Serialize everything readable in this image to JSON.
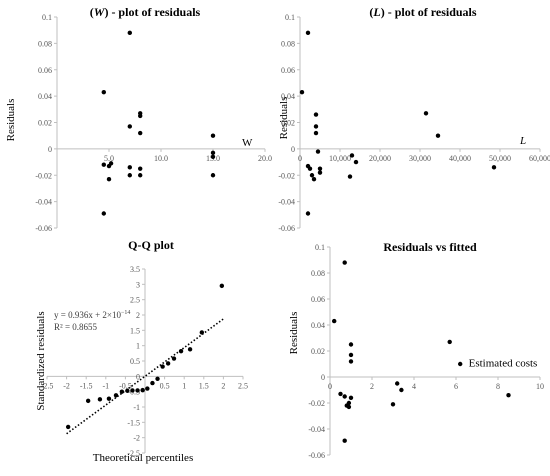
{
  "chart_data": [
    {
      "type": "scatter",
      "title_var": "W",
      "title_rest": " - plot of residuals",
      "ylabel": "Residuals",
      "xlabel": "W",
      "xlim": [
        0,
        20
      ],
      "ylim": [
        -0.06,
        0.1
      ],
      "xticks": [
        0,
        5,
        10,
        15,
        20
      ],
      "xtick_labels": [
        "",
        "5.0",
        "10.0",
        "15.0",
        "20.0"
      ],
      "yticks": [
        0.1,
        0.08,
        0.06,
        0.04,
        0.02,
        0,
        -0.02,
        -0.04,
        -0.06
      ],
      "ytick_labels": [
        "0.1",
        "0.08",
        "0.06",
        "0.04",
        "0.02",
        "0",
        "-0.02",
        "-0.04",
        "-0.06"
      ],
      "points": [
        {
          "x": 4.5,
          "y": 0.043
        },
        {
          "x": 4.5,
          "y": -0.012
        },
        {
          "x": 4.5,
          "y": -0.049
        },
        {
          "x": 5.0,
          "y": -0.013
        },
        {
          "x": 5.0,
          "y": -0.023
        },
        {
          "x": 5.2,
          "y": -0.011
        },
        {
          "x": 7.0,
          "y": 0.088
        },
        {
          "x": 7.0,
          "y": 0.017
        },
        {
          "x": 7.0,
          "y": -0.014
        },
        {
          "x": 7.0,
          "y": -0.02
        },
        {
          "x": 8.0,
          "y": 0.027
        },
        {
          "x": 8.0,
          "y": 0.025
        },
        {
          "x": 8.0,
          "y": 0.012
        },
        {
          "x": 8.0,
          "y": -0.015
        },
        {
          "x": 8.0,
          "y": -0.02
        },
        {
          "x": 15.0,
          "y": 0.01
        },
        {
          "x": 15.0,
          "y": -0.003
        },
        {
          "x": 15.0,
          "y": -0.006
        },
        {
          "x": 15.0,
          "y": -0.02
        }
      ]
    },
    {
      "type": "scatter",
      "title_var": "L",
      "title_rest": " - plot of residuals",
      "ylabel": "Residuals",
      "xlabel": "L",
      "xlim": [
        0,
        60000
      ],
      "ylim": [
        -0.06,
        0.1
      ],
      "xticks": [
        0,
        10000,
        20000,
        30000,
        40000,
        50000,
        60000
      ],
      "xtick_labels": [
        "0",
        "10,000",
        "20,000",
        "30,000",
        "40,000",
        "50,000",
        "60,000"
      ],
      "yticks": [
        0.1,
        0.08,
        0.06,
        0.04,
        0.02,
        0,
        -0.02,
        -0.04,
        -0.06
      ],
      "ytick_labels": [
        "0.1",
        "0.08",
        "0.06",
        "0.04",
        "0.02",
        "0",
        "-0.02",
        "-0.04",
        "-0.06"
      ],
      "points": [
        {
          "x": 500,
          "y": 0.043
        },
        {
          "x": 2000,
          "y": 0.088
        },
        {
          "x": 2000,
          "y": -0.013
        },
        {
          "x": 2000,
          "y": -0.049
        },
        {
          "x": 2500,
          "y": -0.015
        },
        {
          "x": 3000,
          "y": -0.02
        },
        {
          "x": 3500,
          "y": -0.023
        },
        {
          "x": 4000,
          "y": 0.026
        },
        {
          "x": 4000,
          "y": 0.017
        },
        {
          "x": 4000,
          "y": 0.012
        },
        {
          "x": 4500,
          "y": -0.002
        },
        {
          "x": 5000,
          "y": -0.018
        },
        {
          "x": 5000,
          "y": -0.015
        },
        {
          "x": 12500,
          "y": -0.021
        },
        {
          "x": 13000,
          "y": -0.005
        },
        {
          "x": 14000,
          "y": -0.01
        },
        {
          "x": 31500,
          "y": 0.027
        },
        {
          "x": 34500,
          "y": 0.01
        },
        {
          "x": 48500,
          "y": -0.014
        }
      ]
    },
    {
      "type": "scatter",
      "title": "Q-Q plot",
      "ylabel": "Standardized residuals",
      "xlabel": "Theoretical percentiles",
      "xlim": [
        -2.5,
        2.5
      ],
      "ylim": [
        -2.5,
        3.5
      ],
      "xticks": [
        -2.5,
        -2,
        -1.5,
        -1,
        -0.5,
        0,
        0.5,
        1,
        1.5,
        2,
        2.5
      ],
      "xtick_labels": [
        "-2.5",
        "-2",
        "-1.5",
        "-1",
        "-0.5",
        "0",
        "0.5",
        "1",
        "1.5",
        "2",
        "2.5"
      ],
      "yticks": [
        3.5,
        3,
        2.5,
        2,
        1.5,
        1,
        0.5,
        0,
        -0.5,
        -1,
        -1.5,
        -2,
        -2.5
      ],
      "ytick_labels": [
        "3.5",
        "3",
        "2.5",
        "2",
        "1.5",
        "1",
        "0.5",
        "0",
        "-0.5",
        "-1",
        "-1.5",
        "-2",
        "-2.5"
      ],
      "trendline": {
        "label": "y = 0.936x + 2×10",
        "exp": "−14",
        "r2": "R² = 0.8655",
        "slope": 0.936,
        "intercept": 0
      },
      "points": [
        {
          "x": -1.96,
          "y": -1.65
        },
        {
          "x": -1.45,
          "y": -0.8
        },
        {
          "x": -1.15,
          "y": -0.75
        },
        {
          "x": -0.92,
          "y": -0.73
        },
        {
          "x": -0.74,
          "y": -0.62
        },
        {
          "x": -0.59,
          "y": -0.5
        },
        {
          "x": -0.45,
          "y": -0.47
        },
        {
          "x": -0.32,
          "y": -0.46
        },
        {
          "x": -0.19,
          "y": -0.46
        },
        {
          "x": -0.06,
          "y": -0.45
        },
        {
          "x": 0.06,
          "y": -0.4
        },
        {
          "x": 0.19,
          "y": -0.22
        },
        {
          "x": 0.32,
          "y": -0.08
        },
        {
          "x": 0.45,
          "y": 0.32
        },
        {
          "x": 0.59,
          "y": 0.42
        },
        {
          "x": 0.74,
          "y": 0.58
        },
        {
          "x": 0.92,
          "y": 0.82
        },
        {
          "x": 1.15,
          "y": 0.88
        },
        {
          "x": 1.45,
          "y": 1.43
        },
        {
          "x": 1.96,
          "y": 2.95
        }
      ]
    },
    {
      "type": "scatter",
      "title": "Residuals vs fitted",
      "ylabel": "Residuals",
      "xlabel": "Estimated costs",
      "xlim": [
        0,
        10
      ],
      "ylim": [
        -0.06,
        0.1
      ],
      "xticks": [
        0,
        2,
        4,
        6,
        8,
        10
      ],
      "xtick_labels": [
        "0",
        "2",
        "4",
        "6",
        "8",
        "10"
      ],
      "yticks": [
        0.1,
        0.08,
        0.06,
        0.04,
        0.02,
        0,
        -0.02,
        -0.04,
        -0.06
      ],
      "ytick_labels": [
        "0.1",
        "0.08",
        "0.06",
        "0.04",
        "0.02",
        "0",
        "-0.02",
        "-0.04",
        "-0.06"
      ],
      "points": [
        {
          "x": 0.2,
          "y": 0.043
        },
        {
          "x": 0.7,
          "y": 0.088
        },
        {
          "x": 0.5,
          "y": -0.013
        },
        {
          "x": 0.7,
          "y": -0.049
        },
        {
          "x": 0.7,
          "y": -0.015
        },
        {
          "x": 0.8,
          "y": -0.022
        },
        {
          "x": 0.9,
          "y": -0.02
        },
        {
          "x": 1.0,
          "y": 0.025
        },
        {
          "x": 1.0,
          "y": 0.017
        },
        {
          "x": 1.0,
          "y": 0.012
        },
        {
          "x": 1.0,
          "y": -0.016
        },
        {
          "x": 0.9,
          "y": -0.023
        },
        {
          "x": 3.0,
          "y": -0.021
        },
        {
          "x": 3.2,
          "y": -0.005
        },
        {
          "x": 3.4,
          "y": -0.01
        },
        {
          "x": 5.7,
          "y": 0.027
        },
        {
          "x": 6.2,
          "y": 0.01
        },
        {
          "x": 8.5,
          "y": -0.014
        }
      ]
    }
  ]
}
